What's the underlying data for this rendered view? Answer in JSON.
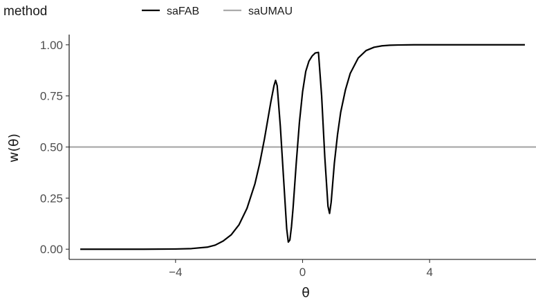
{
  "chart_data": {
    "type": "line",
    "xlabel": "θ",
    "ylabel": "w(θ)",
    "xlim": [
      -7.35,
      7.35
    ],
    "ylim": [
      -0.05,
      1.05
    ],
    "xticks": [
      -4,
      0,
      4
    ],
    "xtick_labels": [
      "−4",
      "0",
      "4"
    ],
    "yticks": [
      0,
      0.25,
      0.5,
      0.75,
      1
    ],
    "ytick_labels": [
      "0.00",
      "0.25",
      "0.50",
      "0.75",
      "1.00"
    ],
    "grid": false,
    "legend": {
      "title": "method",
      "position": "top",
      "entries": [
        {
          "label": "saFAB",
          "color": "#000000"
        },
        {
          "label": "saUMAU",
          "color": "#aaaaaa"
        }
      ]
    },
    "series": [
      {
        "name": "saFAB",
        "color": "#000000",
        "x": [
          -7.0,
          -6.0,
          -5.0,
          -4.0,
          -3.5,
          -3.0,
          -2.75,
          -2.5,
          -2.25,
          -2.0,
          -1.75,
          -1.5,
          -1.35,
          -1.2,
          -1.1,
          -1.0,
          -0.9,
          -0.85,
          -0.8,
          -0.7,
          -0.6,
          -0.5,
          -0.45,
          -0.4,
          -0.35,
          -0.3,
          -0.2,
          -0.1,
          0.0,
          0.1,
          0.2,
          0.3,
          0.4,
          0.5,
          0.6,
          0.7,
          0.8,
          0.85,
          0.9,
          1.0,
          1.1,
          1.2,
          1.35,
          1.5,
          1.75,
          2.0,
          2.25,
          2.5,
          2.75,
          3.0,
          3.5,
          4.0,
          5.0,
          6.0,
          7.0
        ],
        "y": [
          0.0,
          0.0,
          0.0,
          0.001,
          0.003,
          0.01,
          0.02,
          0.04,
          0.07,
          0.12,
          0.2,
          0.32,
          0.42,
          0.54,
          0.63,
          0.72,
          0.8,
          0.826,
          0.8,
          0.6,
          0.35,
          0.1,
          0.035,
          0.045,
          0.11,
          0.2,
          0.42,
          0.62,
          0.77,
          0.87,
          0.92,
          0.945,
          0.96,
          0.963,
          0.75,
          0.45,
          0.21,
          0.175,
          0.23,
          0.42,
          0.56,
          0.67,
          0.78,
          0.86,
          0.935,
          0.972,
          0.988,
          0.995,
          0.998,
          0.999,
          1.0,
          1.0,
          1.0,
          1.0,
          1.0
        ]
      },
      {
        "name": "saUMAU",
        "color": "#aaaaaa",
        "x": [
          -7.35,
          7.35
        ],
        "y": [
          0.5,
          0.5
        ]
      }
    ]
  }
}
